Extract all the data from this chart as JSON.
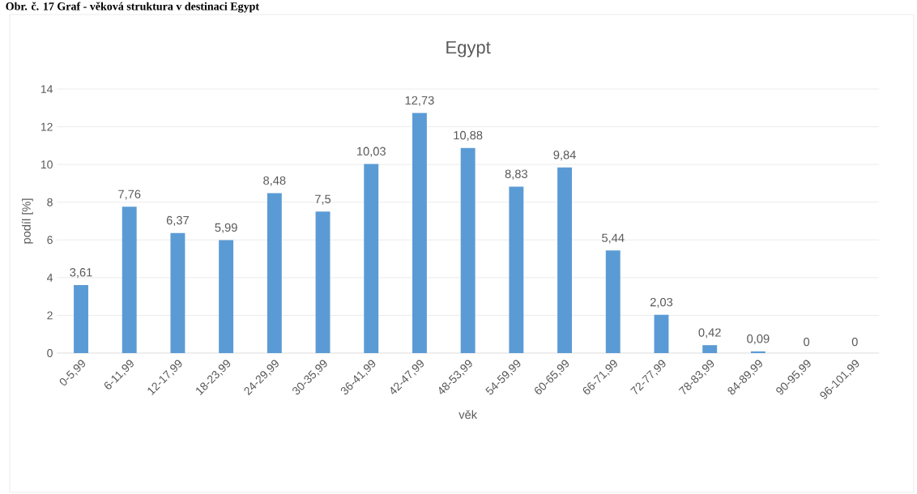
{
  "chart_data": {
    "type": "bar",
    "title": "Egypt",
    "xlabel": "věk",
    "ylabel": "podíl [%]",
    "annotations": [
      "Obr. č. 17 Graf - věková struktura v destinaci Egypt"
    ],
    "categories": [
      "0-5,99",
      "6-11,99",
      "12-17,99",
      "18-23,99",
      "24-29,99",
      "30-35,99",
      "36-41,99",
      "42-47,99",
      "48-53,99",
      "54-59,99",
      "60-65,99",
      "66-71,99",
      "72-77,99",
      "78-83,99",
      "84-89,99",
      "90-95,99",
      "96-101,99"
    ],
    "values": [
      3.61,
      7.76,
      6.37,
      5.99,
      8.48,
      7.5,
      10.03,
      12.73,
      10.88,
      8.83,
      9.84,
      5.44,
      2.03,
      0.42,
      0.09,
      0,
      0
    ],
    "value_labels": [
      "3,61",
      "7,76",
      "6,37",
      "5,99",
      "8,48",
      "7,5",
      "10,03",
      "12,73",
      "10,88",
      "8,83",
      "9,84",
      "5,44",
      "2,03",
      "0,42",
      "0,09",
      "0",
      "0"
    ],
    "color": "#5b9bd5",
    "ylim": [
      0,
      14
    ],
    "yticks": [
      0,
      2,
      4,
      6,
      8,
      10,
      12,
      14
    ],
    "grid": "y"
  }
}
